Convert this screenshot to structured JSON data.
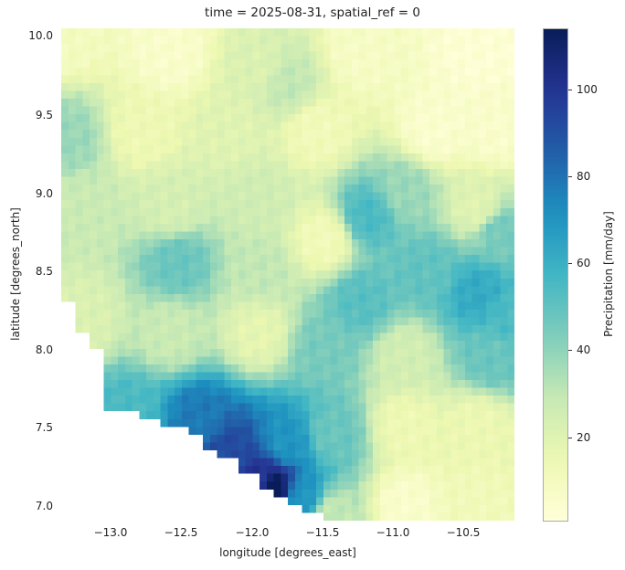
{
  "chart_data": {
    "type": "heatmap",
    "title": "time = 2025-08-31, spatial_ref = 0",
    "xlabel": "longitude [degrees_east]",
    "ylabel": "latitude [degrees_north]",
    "xlim": [
      -13.35,
      -10.25
    ],
    "ylim": [
      6.9,
      10.05
    ],
    "x_ticks": [
      -13.0,
      -12.5,
      -12.0,
      -11.5,
      -11.0,
      -10.5
    ],
    "x_tick_labels": [
      "−13.0",
      "−12.5",
      "−12.0",
      "−11.5",
      "−11.0",
      "−10.5"
    ],
    "y_ticks": [
      10.0,
      9.5,
      9.0,
      8.5,
      8.0,
      7.5,
      7.0
    ],
    "y_tick_labels": [
      "10.0",
      "9.5",
      "9.0",
      "8.5",
      "8.0",
      "7.5",
      "7.0"
    ],
    "grid": false,
    "colorbar": {
      "label": "Precipitation [mm/day]",
      "colormap": "YlGnBu",
      "vmin": 1,
      "vmax": 114,
      "ticks": [
        20,
        40,
        60,
        80,
        100
      ],
      "tick_labels": [
        "20",
        "40",
        "60",
        "80",
        "100"
      ],
      "colors": [
        "#ffffd9",
        "#edf8b1",
        "#c7e9b4",
        "#7fcdbb",
        "#41b6c4",
        "#1d91c0",
        "#225ea8",
        "#253494",
        "#081d58"
      ]
    },
    "grid_shape": {
      "cols": 64,
      "rows": 63
    },
    "anchors": {
      "description": "Approximate precipitation (mm/day) at sampled grid points read from colors; full field interpolated between these",
      "points": [
        {
          "lon": -13.3,
          "lat": 10.0,
          "value": 10
        },
        {
          "lon": -12.6,
          "lat": 9.9,
          "value": 6
        },
        {
          "lon": -12.0,
          "lat": 9.8,
          "value": 22
        },
        {
          "lon": -11.8,
          "lat": 9.7,
          "value": 30
        },
        {
          "lon": -11.3,
          "lat": 9.9,
          "value": 8
        },
        {
          "lon": -10.5,
          "lat": 9.9,
          "value": 3
        },
        {
          "lon": -13.3,
          "lat": 9.35,
          "value": 38
        },
        {
          "lon": -12.8,
          "lat": 9.4,
          "value": 14
        },
        {
          "lon": -12.2,
          "lat": 9.4,
          "value": 20
        },
        {
          "lon": -11.6,
          "lat": 9.4,
          "value": 12
        },
        {
          "lon": -10.8,
          "lat": 9.4,
          "value": 5
        },
        {
          "lon": -10.4,
          "lat": 9.4,
          "value": 6
        },
        {
          "lon": -13.2,
          "lat": 8.9,
          "value": 28
        },
        {
          "lon": -12.6,
          "lat": 8.9,
          "value": 24
        },
        {
          "lon": -12.0,
          "lat": 8.95,
          "value": 26
        },
        {
          "lon": -11.25,
          "lat": 8.85,
          "value": 55
        },
        {
          "lon": -11.0,
          "lat": 9.0,
          "value": 38
        },
        {
          "lon": -10.5,
          "lat": 8.9,
          "value": 20
        },
        {
          "lon": -10.35,
          "lat": 8.75,
          "value": 45
        },
        {
          "lon": -12.55,
          "lat": 8.55,
          "value": 48
        },
        {
          "lon": -12.0,
          "lat": 8.5,
          "value": 30
        },
        {
          "lon": -11.55,
          "lat": 8.7,
          "value": 12
        },
        {
          "lon": -11.3,
          "lat": 8.3,
          "value": 52
        },
        {
          "lon": -10.85,
          "lat": 8.5,
          "value": 50
        },
        {
          "lon": -10.5,
          "lat": 8.35,
          "value": 62
        },
        {
          "lon": -10.3,
          "lat": 8.2,
          "value": 55
        },
        {
          "lon": -13.2,
          "lat": 8.2,
          "value": 22
        },
        {
          "lon": -12.6,
          "lat": 8.1,
          "value": 28
        },
        {
          "lon": -12.0,
          "lat": 8.1,
          "value": 18
        },
        {
          "lon": -11.55,
          "lat": 8.0,
          "value": 45
        },
        {
          "lon": -11.0,
          "lat": 7.95,
          "value": 25
        },
        {
          "lon": -10.4,
          "lat": 7.95,
          "value": 48
        },
        {
          "lon": -12.9,
          "lat": 7.6,
          "value": 55
        },
        {
          "lon": -12.4,
          "lat": 7.55,
          "value": 78
        },
        {
          "lon": -12.2,
          "lat": 7.35,
          "value": 92
        },
        {
          "lon": -11.8,
          "lat": 7.4,
          "value": 70
        },
        {
          "lon": -11.5,
          "lat": 7.45,
          "value": 48
        },
        {
          "lon": -11.0,
          "lat": 7.5,
          "value": 14
        },
        {
          "lon": -10.5,
          "lat": 7.5,
          "value": 15
        },
        {
          "lon": -11.9,
          "lat": 7.1,
          "value": 114
        },
        {
          "lon": -12.0,
          "lat": 7.15,
          "value": 100
        },
        {
          "lon": -11.7,
          "lat": 7.05,
          "value": 70
        },
        {
          "lon": -11.5,
          "lat": 6.95,
          "value": 30
        },
        {
          "lon": -11.0,
          "lat": 7.0,
          "value": 6
        },
        {
          "lon": -10.5,
          "lat": 7.0,
          "value": 12
        }
      ]
    },
    "missing_region": "ocean (lower-left, white) bounded by coastline from (-13.35, 8.3) stepping down to (-11.55, 6.9)"
  }
}
